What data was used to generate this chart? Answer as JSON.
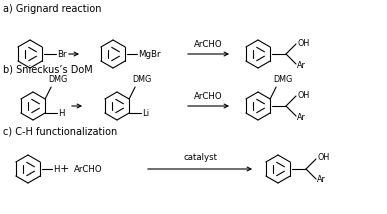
{
  "background_color": "#ffffff",
  "section_labels": [
    "a) Grignard reaction",
    "b) Snieckus’s DoM",
    "c) C-H functionalization"
  ],
  "fontsize_label": 7.0,
  "fontsize_chem": 6.2,
  "fontsize_small": 5.8
}
